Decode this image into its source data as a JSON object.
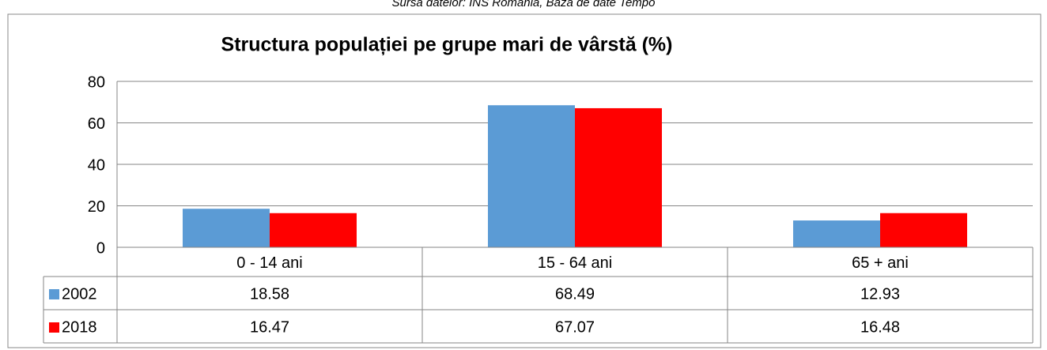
{
  "chart_data": {
    "type": "bar",
    "source": "Sursa datelor: INS România, Baza de date Tempo",
    "title": "Structura populației pe grupe mari de vârstă (%)",
    "categories": [
      "0 - 14 ani",
      "15 - 64 ani",
      "65 + ani"
    ],
    "series": [
      {
        "name": "2002",
        "color": "#5b9bd5",
        "values": [
          18.58,
          68.49,
          12.93
        ]
      },
      {
        "name": "2018",
        "color": "#ff0000",
        "values": [
          16.47,
          67.07,
          16.48
        ]
      }
    ],
    "ylim": [
      0,
      80
    ],
    "yticks": [
      0,
      20,
      40,
      60,
      80
    ],
    "grid": true,
    "data_table": true
  }
}
